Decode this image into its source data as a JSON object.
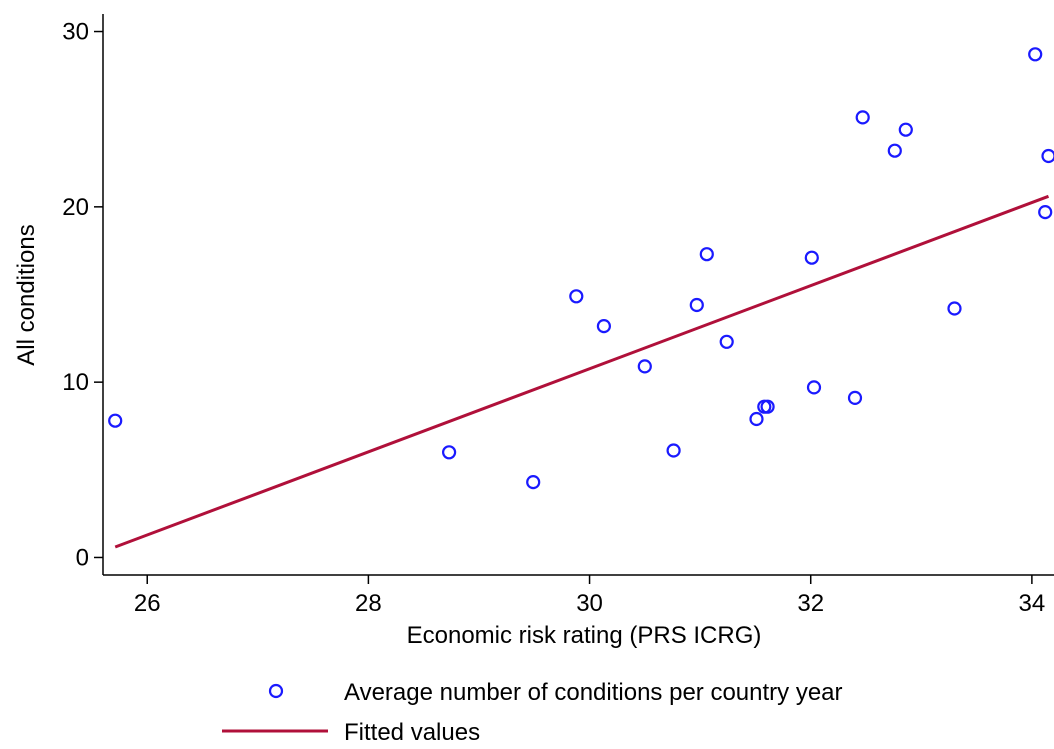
{
  "chart_data": {
    "type": "scatter",
    "title": "",
    "xlabel": "Economic risk rating (PRS ICRG)",
    "ylabel": "All conditions",
    "xlim": [
      25.6,
      34.2
    ],
    "ylim": [
      -1,
      31
    ],
    "xticks": [
      26,
      28,
      30,
      32,
      34
    ],
    "yticks": [
      0,
      10,
      20,
      30
    ],
    "xtick_labels": [
      "26",
      "28",
      "30",
      "32",
      "34"
    ],
    "ytick_labels": [
      "0",
      "10",
      "20",
      "30"
    ],
    "grid": false,
    "legend_position": "bottom",
    "series": [
      {
        "name": "Average number of conditions per country year",
        "kind": "scatter",
        "marker": "hollow-circle",
        "color": "#1a1aff",
        "x": [
          25.71,
          28.73,
          29.49,
          29.88,
          30.13,
          30.5,
          30.76,
          30.97,
          31.06,
          31.24,
          31.51,
          31.58,
          31.61,
          32.01,
          32.03,
          32.4,
          32.47,
          32.76,
          32.86,
          33.3,
          34.03,
          34.12,
          34.15
        ],
        "y": [
          7.8,
          6.0,
          4.3,
          14.9,
          13.2,
          10.9,
          6.1,
          14.4,
          17.3,
          12.3,
          7.9,
          8.6,
          8.6,
          17.1,
          9.7,
          9.1,
          25.1,
          23.2,
          24.4,
          14.2,
          28.7,
          19.7,
          22.9
        ]
      },
      {
        "name": "Fitted values",
        "kind": "line",
        "color": "#b0103a",
        "x": [
          25.71,
          34.15
        ],
        "y": [
          0.6,
          20.6
        ]
      }
    ]
  }
}
